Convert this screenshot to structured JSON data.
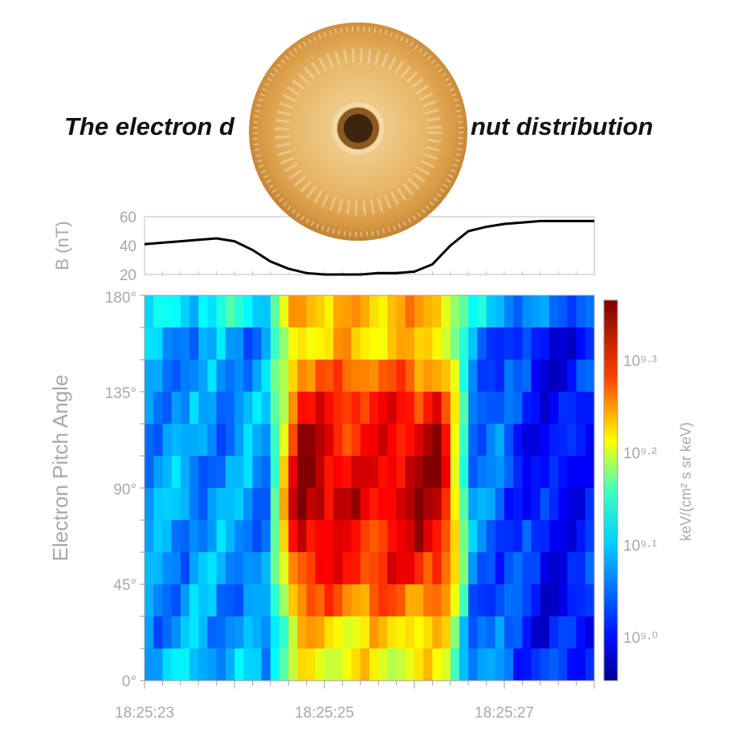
{
  "title": {
    "left": "The electron d",
    "right": "nut distribution"
  },
  "chart_data": [
    {
      "type": "line",
      "ylabel": "B (nT)",
      "ylim": [
        20,
        60
      ],
      "yticks": [
        "20",
        "40",
        "60"
      ],
      "x_range": [
        "18:25:23",
        "18:25:28"
      ],
      "series": [
        {
          "x_seconds": [
            0,
            0.2,
            0.4,
            0.6,
            0.8,
            1.0,
            1.2,
            1.4,
            1.6,
            1.8,
            2.0,
            2.2,
            2.4,
            2.6,
            2.8,
            3.0,
            3.2,
            3.4,
            3.6,
            3.8,
            4.0,
            4.2,
            4.4,
            4.6,
            4.8,
            5.0
          ],
          "values": [
            41,
            42,
            43,
            44,
            45,
            43,
            37,
            29,
            24,
            21,
            20,
            20,
            20,
            21,
            21,
            22,
            27,
            40,
            50,
            53,
            55,
            56,
            57,
            57,
            57,
            57
          ]
        }
      ]
    },
    {
      "type": "heatmap",
      "ylabel": "Electron Pitch Angle",
      "yticks": [
        "0°",
        "45°",
        "90°",
        "135°",
        "180°"
      ],
      "xticks": [
        "18:25:23",
        "18:25:25",
        "18:25:27"
      ],
      "colorbar_label": "keV/(cm² s sr keV)",
      "colorbar_ticks": [
        "10⁹·⁰",
        "10⁹·¹",
        "10⁹·²",
        "10⁹·³"
      ],
      "colorbar_range": [
        8.95,
        9.35
      ],
      "pitch_bins": 12,
      "time_columns": 50,
      "description_rows_top_to_bottom": "log10 flux per pitch-angle bin; peak ~10^9.3 near 90° between 18:25:24.3 and 18:25:26.6"
    }
  ]
}
